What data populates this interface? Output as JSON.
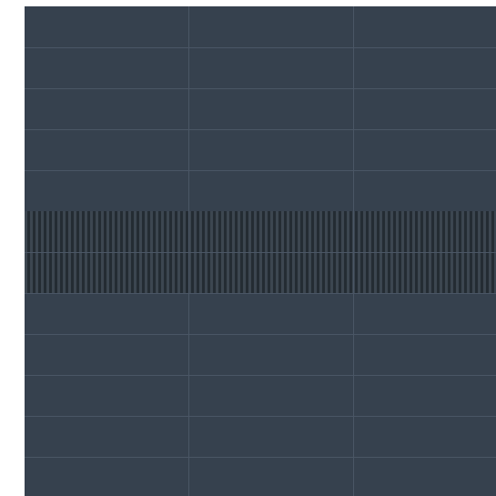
{
  "grid": {
    "rows": 12,
    "columns": 3,
    "band_rows": [
      5,
      6
    ]
  },
  "colors": {
    "background": "#ffffff",
    "cell": "#36414e",
    "grid_line": "#4a5665",
    "band_light": "#3c4650",
    "band_dark": "#242c33"
  }
}
